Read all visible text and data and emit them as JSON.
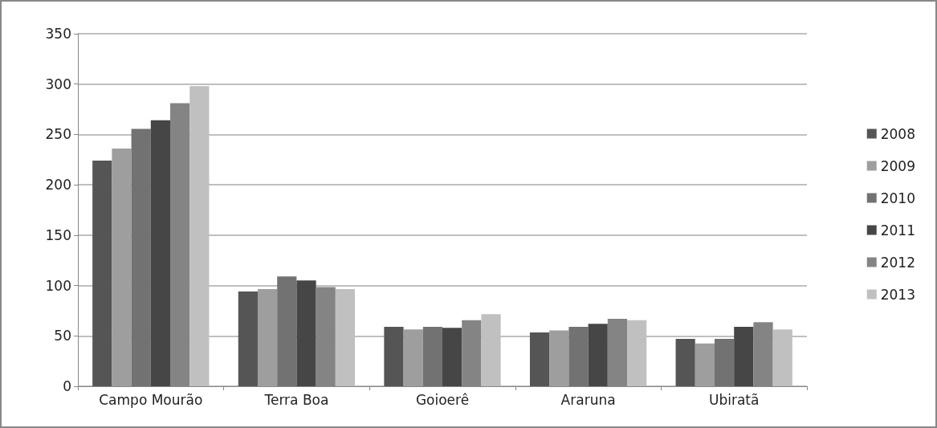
{
  "chart_data": {
    "type": "bar",
    "categories": [
      "Campo Mourão",
      "Terra Boa",
      "Goioerê",
      "Araruna",
      "Ubiratã"
    ],
    "series": [
      {
        "name": "2008",
        "color": "#555555",
        "values": [
          224,
          94,
          59,
          53.5,
          47
        ]
      },
      {
        "name": "2009",
        "color": "#9e9e9e",
        "values": [
          236,
          96.5,
          56.5,
          55.5,
          42.5
        ]
      },
      {
        "name": "2010",
        "color": "#727272",
        "values": [
          255.5,
          109,
          59,
          59,
          47
        ]
      },
      {
        "name": "2011",
        "color": "#464646",
        "values": [
          264,
          105,
          58,
          62,
          59
        ]
      },
      {
        "name": "2012",
        "color": "#848484",
        "values": [
          281,
          98.5,
          65.5,
          67,
          63.5
        ]
      },
      {
        "name": "2013",
        "color": "#c0c0c0",
        "values": [
          298,
          96.5,
          71.5,
          65.5,
          56.5
        ]
      }
    ],
    "ylim": [
      0,
      350
    ],
    "yticks": [
      0,
      50,
      100,
      150,
      200,
      250,
      300,
      350
    ],
    "grid": "y",
    "legend": "right"
  }
}
